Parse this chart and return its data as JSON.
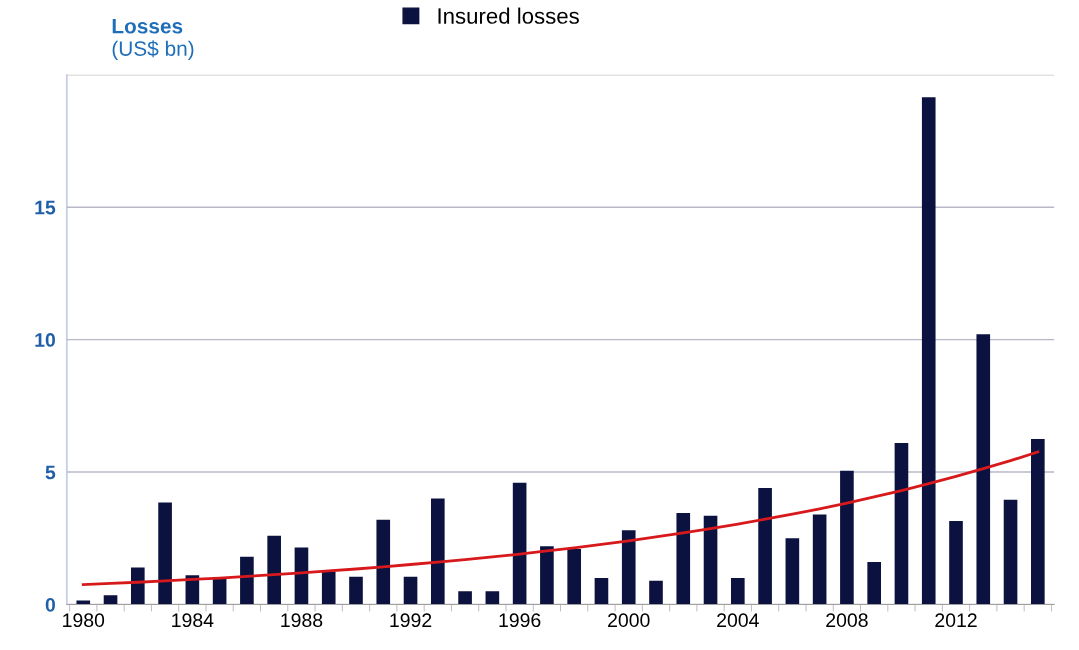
{
  "chart_data": {
    "type": "bar",
    "ylabel": "Losses\n(US$ bn)",
    "categories": [
      "1980",
      null,
      null,
      null,
      "1984",
      null,
      null,
      null,
      "1988",
      null,
      null,
      null,
      "1992",
      null,
      null,
      null,
      "1996",
      null,
      null,
      null,
      "2000",
      null,
      null,
      null,
      "2004",
      null,
      null,
      null,
      "2008",
      null,
      null,
      null,
      "2012",
      null,
      null,
      null
    ],
    "series": [
      {
        "name": "Insured losses",
        "color": "#0b1240",
        "values": [
          0.15,
          0.35,
          1.4,
          3.85,
          1.1,
          1.0,
          1.8,
          2.6,
          2.15,
          1.25,
          1.05,
          3.2,
          1.05,
          4.0,
          0.5,
          0.5,
          4.6,
          2.2,
          2.1,
          1.0,
          2.8,
          0.9,
          3.45,
          3.35,
          1.0,
          4.4,
          2.5,
          3.4,
          5.05,
          1.6,
          6.1,
          19.15,
          3.15,
          10.2,
          3.95,
          6.25
        ]
      },
      {
        "type": "line",
        "color": "#d7191c",
        "values": [
          0.75,
          0.8,
          0.84,
          0.89,
          0.95,
          1.0,
          1.06,
          1.13,
          1.19,
          1.27,
          1.34,
          1.42,
          1.51,
          1.6,
          1.69,
          1.8,
          1.9,
          2.02,
          2.14,
          2.27,
          2.4,
          2.55,
          2.7,
          2.86,
          3.03,
          3.22,
          3.41,
          3.61,
          3.83,
          4.06,
          4.3,
          4.56,
          4.84,
          5.13,
          5.43,
          5.76
        ]
      }
    ],
    "ylim": [
      0,
      20
    ],
    "yticks": [
      0,
      5,
      10,
      15
    ],
    "grid": "y",
    "legend": "top"
  }
}
